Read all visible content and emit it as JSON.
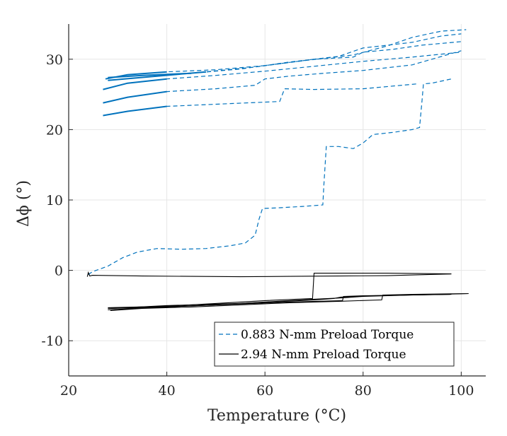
{
  "chart_data": {
    "type": "line",
    "title": "",
    "xlabel": "Temperature (°C)",
    "ylabel": "Δϕ (°)",
    "xlim": [
      20,
      105
    ],
    "ylim": [
      -15,
      35
    ],
    "xticks": [
      20,
      40,
      60,
      80,
      100
    ],
    "yticks": [
      -10,
      0,
      10,
      20,
      30
    ],
    "xtick_labels": [
      "20",
      "40",
      "60",
      "80",
      "100"
    ],
    "ytick_labels": [
      "-10",
      "0",
      "10",
      "20",
      "30"
    ],
    "grid": true,
    "legend_position": "bottom-right",
    "series": [
      {
        "name": "0.883 N-mm Preload Torque",
        "color": "#0072BD",
        "style": "dashed",
        "segments": [
          [
            [
              24,
              -0.6
            ],
            [
              24.8,
              -0.2
            ],
            [
              26,
              0.1
            ],
            [
              28,
              0.6
            ],
            [
              31,
              1.8
            ],
            [
              34,
              2.6
            ],
            [
              38,
              3.1
            ],
            [
              43,
              3.0
            ],
            [
              48,
              3.1
            ],
            [
              53,
              3.5
            ],
            [
              56,
              3.9
            ],
            [
              58,
              5.0
            ],
            [
              58.8,
              7.3
            ],
            [
              59.5,
              8.8
            ],
            [
              63,
              8.9
            ],
            [
              68,
              9.1
            ],
            [
              71.8,
              9.3
            ],
            [
              72,
              12
            ],
            [
              72.5,
              17.6
            ],
            [
              75,
              17.6
            ],
            [
              78,
              17.3
            ],
            [
              80,
              18.1
            ],
            [
              82,
              19.3
            ],
            [
              86,
              19.6
            ],
            [
              90,
              20.0
            ],
            [
              91.5,
              20.3
            ],
            [
              92,
              24
            ],
            [
              92.3,
              26.5
            ],
            [
              94,
              26.6
            ],
            [
              98,
              27.2
            ]
          ],
          [
            [
              27,
              22.0
            ],
            [
              32,
              22.6
            ],
            [
              40,
              23.3
            ],
            [
              50,
              23.6
            ],
            [
              63,
              24.0
            ],
            [
              64,
              25.8
            ],
            [
              70,
              25.7
            ],
            [
              80,
              25.8
            ],
            [
              91,
              26.5
            ]
          ],
          [
            [
              27,
              23.8
            ],
            [
              32,
              24.6
            ],
            [
              40,
              25.4
            ],
            [
              50,
              25.8
            ],
            [
              58,
              26.3
            ],
            [
              60,
              27.2
            ],
            [
              65,
              27.6
            ],
            [
              72,
              28.0
            ],
            [
              80,
              28.4
            ],
            [
              90,
              29.2
            ],
            [
              100,
              31.2
            ]
          ],
          [
            [
              27,
              25.7
            ],
            [
              32,
              26.6
            ],
            [
              40,
              27.2
            ],
            [
              50,
              27.7
            ],
            [
              60,
              28.3
            ],
            [
              70,
              29.0
            ],
            [
              80,
              29.7
            ],
            [
              90,
              30.3
            ],
            [
              100,
              31.0
            ]
          ],
          [
            [
              27.5,
              27.2
            ],
            [
              32,
              27.8
            ],
            [
              40,
              28.2
            ],
            [
              50,
              28.5
            ],
            [
              60,
              29.1
            ],
            [
              70,
              30.0
            ],
            [
              78,
              30.3
            ],
            [
              80,
              31.0
            ],
            [
              86,
              31.4
            ],
            [
              92,
              32.0
            ],
            [
              100,
              32.5
            ]
          ],
          [
            [
              28,
              27.4
            ],
            [
              35,
              27.7
            ],
            [
              45,
              28.0
            ],
            [
              55,
              28.6
            ],
            [
              65,
              29.6
            ],
            [
              75,
              30.4
            ],
            [
              80,
              31.6
            ],
            [
              90,
              32.4
            ],
            [
              96,
              33.3
            ],
            [
              100,
              33.6
            ]
          ],
          [
            [
              28,
              27.0
            ],
            [
              38,
              27.6
            ],
            [
              48,
              28.2
            ],
            [
              58,
              28.9
            ],
            [
              68,
              29.8
            ],
            [
              78,
              30.6
            ],
            [
              85,
              31.9
            ],
            [
              90,
              33.1
            ],
            [
              96,
              34.0
            ],
            [
              101,
              34.2
            ]
          ]
        ]
      },
      {
        "name": "2.94 N-mm Preload Torque",
        "color": "#000000",
        "style": "solid",
        "segments": [
          [
            [
              23.8,
              -0.9
            ],
            [
              24,
              -0.3
            ],
            [
              24.3,
              -0.8
            ],
            [
              24.8,
              -0.7
            ],
            [
              35,
              -0.8
            ],
            [
              45,
              -0.85
            ],
            [
              55,
              -0.9
            ],
            [
              65,
              -0.85
            ],
            [
              75,
              -0.8
            ],
            [
              85,
              -0.75
            ],
            [
              98,
              -0.5
            ]
          ],
          [
            [
              98,
              -0.5
            ],
            [
              85,
              -0.4
            ],
            [
              70,
              -0.4
            ],
            [
              69.7,
              -4.0
            ],
            [
              60,
              -4.3
            ],
            [
              50,
              -4.7
            ],
            [
              40,
              -5.1
            ],
            [
              28,
              -5.3
            ]
          ],
          [
            [
              28,
              -5.6
            ],
            [
              40,
              -5.2
            ],
            [
              50,
              -4.9
            ],
            [
              60,
              -4.5
            ],
            [
              70,
              -4.1
            ],
            [
              76,
              -3.9
            ],
            [
              80,
              -3.7
            ],
            [
              90,
              -3.5
            ],
            [
              101.5,
              -3.3
            ]
          ],
          [
            [
              101.5,
              -3.3
            ],
            [
              90,
              -3.4
            ],
            [
              84,
              -3.5
            ],
            [
              83.8,
              -4.2
            ],
            [
              75,
              -4.4
            ],
            [
              65,
              -4.6
            ],
            [
              55,
              -4.9
            ],
            [
              45,
              -5.2
            ],
            [
              35,
              -5.4
            ],
            [
              28.5,
              -5.7
            ]
          ],
          [
            [
              28.5,
              -5.4
            ],
            [
              40,
              -5.0
            ],
            [
              55,
              -4.7
            ],
            [
              70,
              -4.2
            ],
            [
              74,
              -4.0
            ],
            [
              75.5,
              -3.8
            ],
            [
              82,
              -3.6
            ],
            [
              98,
              -3.4
            ]
          ],
          [
            [
              98,
              -3.4
            ],
            [
              80,
              -3.6
            ],
            [
              76,
              -3.7
            ],
            [
              75.8,
              -4.3
            ],
            [
              65,
              -4.5
            ],
            [
              50,
              -4.9
            ],
            [
              35,
              -5.3
            ],
            [
              28,
              -5.4
            ]
          ]
        ]
      }
    ]
  }
}
